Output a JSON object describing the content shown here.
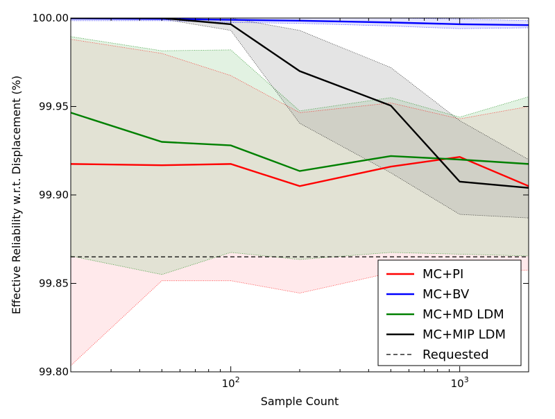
{
  "chart_data": {
    "type": "line",
    "title": "",
    "xlabel": "Sample Count",
    "ylabel": "Effective Reliability w.r.t. Displacement (%)",
    "xscale": "log",
    "xlim": [
      20,
      2000
    ],
    "ylim": [
      99.8,
      100.0
    ],
    "grid": false,
    "legend_position": "lower-right",
    "y_ticks": [
      {
        "value": 99.8,
        "label": "99.80"
      },
      {
        "value": 99.85,
        "label": "99.85"
      },
      {
        "value": 99.9,
        "label": "99.90"
      },
      {
        "value": 99.95,
        "label": "99.95"
      },
      {
        "value": 100.0,
        "label": "100.00"
      }
    ],
    "x_ticks": [
      {
        "value": 100,
        "base": "10",
        "exp": "2"
      },
      {
        "value": 1000,
        "base": "10",
        "exp": "3"
      }
    ],
    "x": [
      20,
      50,
      100,
      200,
      500,
      1000,
      2000
    ],
    "series": [
      {
        "name": "MC+PI",
        "color": "#ff0000",
        "fill": "#ffb6bd",
        "values": [
          99.9175,
          99.9168,
          99.9175,
          99.905,
          99.916,
          99.9215,
          99.905
        ],
        "upper": [
          99.988,
          99.98,
          99.9675,
          99.9465,
          99.952,
          99.943,
          99.95
        ],
        "lower": [
          99.8035,
          99.8515,
          99.8515,
          99.8445,
          99.856,
          99.856,
          99.8575
        ]
      },
      {
        "name": "MC+BV",
        "color": "#0000ff",
        "fill": "#a0a0ff",
        "values": [
          99.9998,
          99.9995,
          99.999,
          99.9985,
          99.9975,
          99.9965,
          99.996
        ],
        "upper": [
          100.0,
          100.0,
          100.0,
          100.0,
          100.0,
          99.9995,
          99.9985
        ],
        "lower": [
          99.9985,
          99.9985,
          99.9975,
          99.997,
          99.9955,
          99.994,
          99.9945
        ]
      },
      {
        "name": "MC+MD LDM",
        "color": "#008000",
        "fill": "#9fd39f",
        "values": [
          99.9465,
          99.93,
          99.928,
          99.9135,
          99.922,
          99.92,
          99.9175
        ],
        "upper": [
          99.9895,
          99.9815,
          99.982,
          99.9475,
          99.955,
          99.944,
          99.9555
        ],
        "lower": [
          99.8655,
          99.855,
          99.8675,
          99.8635,
          99.8675,
          99.8665,
          99.8655
        ]
      },
      {
        "name": "MC+MIP LDM",
        "color": "#000000",
        "fill": "#a5a5a5",
        "values": [
          100.0,
          100.0,
          99.9965,
          99.97,
          99.9505,
          99.9075,
          99.904
        ],
        "upper": [
          100.0,
          100.0,
          100.0,
          99.993,
          99.972,
          99.942,
          99.92
        ],
        "lower": [
          100.0,
          99.9995,
          99.993,
          99.9405,
          99.9125,
          99.889,
          99.887
        ]
      }
    ],
    "reference": {
      "name": "Requested",
      "value": 99.865,
      "color": "#000000"
    }
  }
}
